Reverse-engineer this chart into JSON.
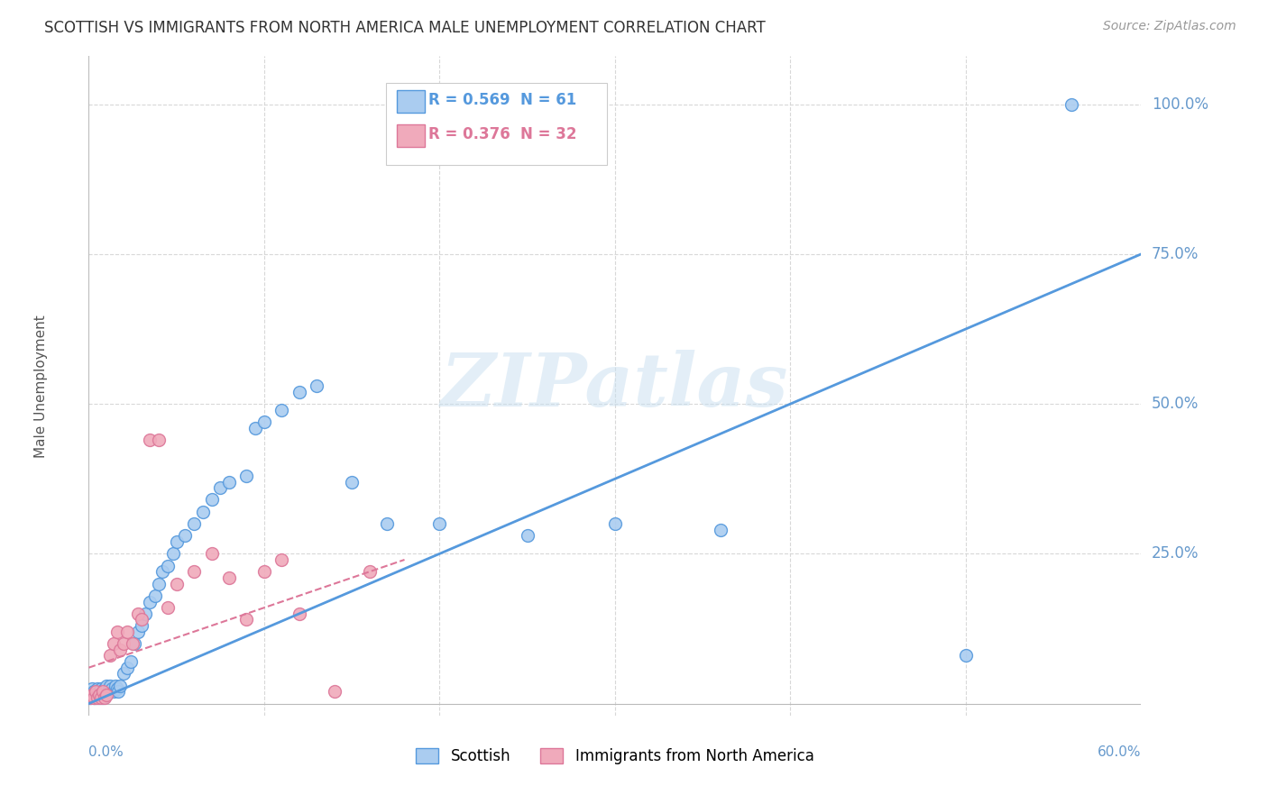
{
  "title": "SCOTTISH VS IMMIGRANTS FROM NORTH AMERICA MALE UNEMPLOYMENT CORRELATION CHART",
  "source": "Source: ZipAtlas.com",
  "ylabel": "Male Unemployment",
  "yticks": [
    0.0,
    0.25,
    0.5,
    0.75,
    1.0
  ],
  "ytick_labels": [
    "",
    "25.0%",
    "50.0%",
    "75.0%",
    "100.0%"
  ],
  "xlim": [
    0.0,
    0.6
  ],
  "ylim": [
    -0.02,
    1.08
  ],
  "background_color": "#ffffff",
  "grid_color": "#d8d8d8",
  "legend_r1": "R = 0.569",
  "legend_n1": "N = 61",
  "legend_r2": "R = 0.376",
  "legend_n2": "N = 32",
  "legend_labels": [
    "Scottish",
    "Immigrants from North America"
  ],
  "scatter_color_1": "#aaccf0",
  "scatter_color_2": "#f0aabb",
  "line_color_1": "#5599dd",
  "line_color_2": "#dd7799",
  "watermark": "ZIPatlas",
  "title_fontsize": 12,
  "axis_label_color": "#6699cc",
  "tick_color": "#6699cc",
  "scottish_x": [
    0.001,
    0.002,
    0.002,
    0.003,
    0.003,
    0.004,
    0.004,
    0.005,
    0.005,
    0.006,
    0.006,
    0.007,
    0.007,
    0.008,
    0.008,
    0.009,
    0.009,
    0.01,
    0.01,
    0.011,
    0.012,
    0.013,
    0.014,
    0.015,
    0.016,
    0.017,
    0.018,
    0.02,
    0.022,
    0.024,
    0.026,
    0.028,
    0.03,
    0.032,
    0.035,
    0.038,
    0.04,
    0.042,
    0.045,
    0.048,
    0.05,
    0.055,
    0.06,
    0.065,
    0.07,
    0.075,
    0.08,
    0.09,
    0.095,
    0.1,
    0.11,
    0.12,
    0.13,
    0.15,
    0.17,
    0.2,
    0.25,
    0.3,
    0.36,
    0.5,
    0.56
  ],
  "scottish_y": [
    0.01,
    0.015,
    0.025,
    0.01,
    0.02,
    0.01,
    0.02,
    0.015,
    0.025,
    0.01,
    0.02,
    0.015,
    0.025,
    0.01,
    0.02,
    0.015,
    0.025,
    0.02,
    0.03,
    0.02,
    0.03,
    0.025,
    0.02,
    0.03,
    0.025,
    0.02,
    0.03,
    0.05,
    0.06,
    0.07,
    0.1,
    0.12,
    0.13,
    0.15,
    0.17,
    0.18,
    0.2,
    0.22,
    0.23,
    0.25,
    0.27,
    0.28,
    0.3,
    0.32,
    0.34,
    0.36,
    0.37,
    0.38,
    0.46,
    0.47,
    0.49,
    0.52,
    0.53,
    0.37,
    0.3,
    0.3,
    0.28,
    0.3,
    0.29,
    0.08,
    1.0
  ],
  "immigrants_x": [
    0.001,
    0.002,
    0.003,
    0.004,
    0.005,
    0.006,
    0.007,
    0.008,
    0.009,
    0.01,
    0.012,
    0.014,
    0.016,
    0.018,
    0.02,
    0.022,
    0.025,
    0.028,
    0.03,
    0.035,
    0.04,
    0.045,
    0.05,
    0.06,
    0.07,
    0.08,
    0.09,
    0.1,
    0.11,
    0.12,
    0.14,
    0.16
  ],
  "immigrants_y": [
    0.01,
    0.015,
    0.01,
    0.02,
    0.01,
    0.015,
    0.01,
    0.02,
    0.01,
    0.015,
    0.08,
    0.1,
    0.12,
    0.09,
    0.1,
    0.12,
    0.1,
    0.15,
    0.14,
    0.44,
    0.44,
    0.16,
    0.2,
    0.22,
    0.25,
    0.21,
    0.14,
    0.22,
    0.24,
    0.15,
    0.02,
    0.22
  ],
  "blue_line_x": [
    0.0,
    0.6
  ],
  "blue_line_y": [
    0.0,
    0.75
  ],
  "pink_line_x": [
    0.0,
    0.18
  ],
  "pink_line_y": [
    0.06,
    0.24
  ]
}
